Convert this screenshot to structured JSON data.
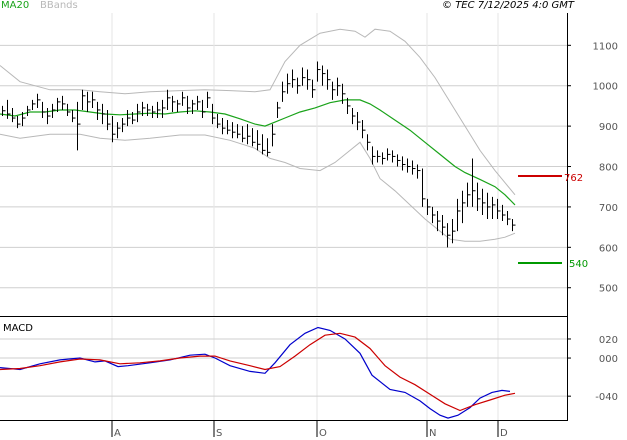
{
  "header": {
    "ma_label": "MA20",
    "bb_label": "BBands",
    "timestamp": "© TEC 7/12/2025 4:0 GMT"
  },
  "macd_label": "MACD",
  "levels": {
    "resistance": {
      "value": 762,
      "label": "762",
      "color": "#cc0000"
    },
    "support": {
      "value": 540,
      "label": "540",
      "color": "#009900"
    }
  },
  "colors": {
    "ma": "#1aa31a",
    "bands": "#b8b8b8",
    "bars": "#000000",
    "macd_line": "#0000cc",
    "signal_line": "#cc0000",
    "grid": "#cfcfcf"
  },
  "chart_data": [
    {
      "type": "ohlc",
      "name": "price",
      "y_ticks": [
        500,
        600,
        700,
        800,
        900,
        1000,
        1100
      ],
      "y_tick_labels": [
        "500",
        "600",
        "700",
        "800",
        "900",
        "1000",
        "1100"
      ],
      "ylim": [
        430,
        1180
      ],
      "x_ticks": [
        "A",
        "S",
        "O",
        "N",
        "D"
      ],
      "grid": true,
      "ma20": [
        [
          0,
          930
        ],
        [
          15,
          925
        ],
        [
          30,
          935
        ],
        [
          45,
          935
        ],
        [
          60,
          940
        ],
        [
          75,
          940
        ],
        [
          90,
          935
        ],
        [
          105,
          930
        ],
        [
          120,
          928
        ],
        [
          135,
          930
        ],
        [
          150,
          932
        ],
        [
          165,
          930
        ],
        [
          180,
          935
        ],
        [
          195,
          938
        ],
        [
          210,
          935
        ],
        [
          225,
          930
        ],
        [
          240,
          918
        ],
        [
          255,
          905
        ],
        [
          265,
          900
        ],
        [
          275,
          910
        ],
        [
          285,
          920
        ],
        [
          300,
          935
        ],
        [
          315,
          945
        ],
        [
          330,
          958
        ],
        [
          345,
          965
        ],
        [
          360,
          965
        ],
        [
          370,
          955
        ],
        [
          380,
          940
        ],
        [
          395,
          915
        ],
        [
          410,
          890
        ],
        [
          425,
          860
        ],
        [
          440,
          830
        ],
        [
          455,
          800
        ],
        [
          465,
          785
        ],
        [
          480,
          768
        ],
        [
          495,
          750
        ],
        [
          505,
          730
        ],
        [
          515,
          705
        ]
      ],
      "bb_upper": [
        [
          0,
          1050
        ],
        [
          20,
          1010
        ],
        [
          50,
          990
        ],
        [
          80,
          990
        ],
        [
          100,
          985
        ],
        [
          125,
          980
        ],
        [
          150,
          985
        ],
        [
          180,
          988
        ],
        [
          205,
          990
        ],
        [
          230,
          988
        ],
        [
          255,
          985
        ],
        [
          270,
          990
        ],
        [
          285,
          1060
        ],
        [
          300,
          1100
        ],
        [
          320,
          1130
        ],
        [
          340,
          1140
        ],
        [
          355,
          1135
        ],
        [
          365,
          1120
        ],
        [
          375,
          1140
        ],
        [
          390,
          1135
        ],
        [
          405,
          1110
        ],
        [
          420,
          1070
        ],
        [
          435,
          1020
        ],
        [
          450,
          960
        ],
        [
          465,
          900
        ],
        [
          480,
          840
        ],
        [
          495,
          790
        ],
        [
          505,
          760
        ],
        [
          515,
          730
        ]
      ],
      "bb_lower": [
        [
          0,
          880
        ],
        [
          20,
          870
        ],
        [
          50,
          880
        ],
        [
          80,
          880
        ],
        [
          100,
          870
        ],
        [
          125,
          865
        ],
        [
          150,
          870
        ],
        [
          180,
          878
        ],
        [
          205,
          878
        ],
        [
          230,
          865
        ],
        [
          255,
          845
        ],
        [
          270,
          820
        ],
        [
          285,
          810
        ],
        [
          300,
          795
        ],
        [
          320,
          790
        ],
        [
          335,
          810
        ],
        [
          350,
          840
        ],
        [
          360,
          860
        ],
        [
          370,
          820
        ],
        [
          380,
          770
        ],
        [
          395,
          740
        ],
        [
          410,
          705
        ],
        [
          425,
          670
        ],
        [
          440,
          640
        ],
        [
          450,
          620
        ],
        [
          465,
          615
        ],
        [
          480,
          615
        ],
        [
          495,
          620
        ],
        [
          505,
          625
        ],
        [
          515,
          635
        ]
      ],
      "bars": [
        [
          2,
          950,
          925,
          938
        ],
        [
          7,
          965,
          918,
          930
        ],
        [
          12,
          945,
          910,
          920
        ],
        [
          17,
          925,
          895,
          905
        ],
        [
          22,
          935,
          900,
          920
        ],
        [
          27,
          950,
          925,
          940
        ],
        [
          32,
          965,
          940,
          955
        ],
        [
          37,
          980,
          945,
          965
        ],
        [
          42,
          960,
          920,
          935
        ],
        [
          47,
          945,
          905,
          925
        ],
        [
          52,
          955,
          920,
          940
        ],
        [
          57,
          970,
          935,
          960
        ],
        [
          62,
          975,
          940,
          955
        ],
        [
          67,
          955,
          925,
          935
        ],
        [
          72,
          940,
          910,
          920
        ],
        [
          77,
          960,
          840,
          905
        ],
        [
          82,
          990,
          940,
          975
        ],
        [
          87,
          985,
          935,
          960
        ],
        [
          92,
          985,
          945,
          965
        ],
        [
          97,
          960,
          915,
          940
        ],
        [
          102,
          955,
          905,
          930
        ],
        [
          107,
          940,
          890,
          905
        ],
        [
          112,
          925,
          860,
          880
        ],
        [
          117,
          910,
          870,
          895
        ],
        [
          122,
          920,
          885,
          905
        ],
        [
          127,
          940,
          900,
          920
        ],
        [
          132,
          935,
          905,
          915
        ],
        [
          137,
          955,
          910,
          935
        ],
        [
          142,
          960,
          925,
          945
        ],
        [
          147,
          955,
          925,
          940
        ],
        [
          152,
          950,
          920,
          935
        ],
        [
          157,
          960,
          920,
          940
        ],
        [
          162,
          965,
          920,
          945
        ],
        [
          167,
          990,
          940,
          970
        ],
        [
          172,
          975,
          935,
          960
        ],
        [
          177,
          965,
          935,
          955
        ],
        [
          182,
          985,
          950,
          970
        ],
        [
          187,
          975,
          930,
          945
        ],
        [
          192,
          965,
          930,
          955
        ],
        [
          197,
          975,
          940,
          960
        ],
        [
          202,
          965,
          920,
          935
        ],
        [
          207,
          985,
          945,
          970
        ],
        [
          212,
          955,
          905,
          920
        ],
        [
          217,
          930,
          895,
          905
        ],
        [
          222,
          920,
          880,
          895
        ],
        [
          227,
          915,
          880,
          890
        ],
        [
          232,
          910,
          870,
          885
        ],
        [
          237,
          905,
          870,
          880
        ],
        [
          242,
          900,
          860,
          870
        ],
        [
          247,
          905,
          855,
          875
        ],
        [
          252,
          895,
          850,
          860
        ],
        [
          257,
          890,
          840,
          855
        ],
        [
          262,
          880,
          830,
          840
        ],
        [
          267,
          870,
          825,
          835
        ],
        [
          272,
          905,
          850,
          880
        ],
        [
          277,
          960,
          920,
          945
        ],
        [
          282,
          1010,
          960,
          985
        ],
        [
          287,
          1030,
          980,
          1005
        ],
        [
          292,
          1040,
          995,
          1015
        ],
        [
          297,
          1020,
          980,
          1000
        ],
        [
          302,
          1045,
          1000,
          1020
        ],
        [
          307,
          1040,
          990,
          1015
        ],
        [
          312,
          1015,
          970,
          990
        ],
        [
          317,
          1060,
          1010,
          1040
        ],
        [
          322,
          1050,
          1000,
          1030
        ],
        [
          327,
          1040,
          990,
          1015
        ],
        [
          332,
          1010,
          965,
          990
        ],
        [
          337,
          1020,
          975,
          1000
        ],
        [
          342,
          1005,
          955,
          980
        ],
        [
          347,
          970,
          930,
          950
        ],
        [
          352,
          945,
          905,
          925
        ],
        [
          357,
          935,
          890,
          910
        ],
        [
          362,
          915,
          870,
          890
        ],
        [
          367,
          880,
          840,
          860
        ],
        [
          372,
          850,
          805,
          825
        ],
        [
          377,
          840,
          810,
          825
        ],
        [
          382,
          835,
          805,
          820
        ],
        [
          387,
          845,
          815,
          830
        ],
        [
          392,
          840,
          810,
          825
        ],
        [
          397,
          830,
          800,
          815
        ],
        [
          402,
          825,
          790,
          805
        ],
        [
          407,
          820,
          785,
          800
        ],
        [
          412,
          815,
          780,
          795
        ],
        [
          417,
          805,
          770,
          790
        ],
        [
          422,
          795,
          700,
          720
        ],
        [
          427,
          720,
          680,
          700
        ],
        [
          432,
          700,
          660,
          680
        ],
        [
          437,
          690,
          640,
          665
        ],
        [
          442,
          680,
          630,
          650
        ],
        [
          447,
          660,
          600,
          630
        ],
        [
          452,
          670,
          610,
          640
        ],
        [
          457,
          720,
          640,
          690
        ],
        [
          462,
          740,
          660,
          710
        ],
        [
          467,
          760,
          700,
          730
        ],
        [
          472,
          820,
          700,
          740
        ],
        [
          477,
          760,
          690,
          720
        ],
        [
          482,
          745,
          680,
          710
        ],
        [
          487,
          735,
          670,
          700
        ],
        [
          492,
          725,
          670,
          705
        ],
        [
          497,
          720,
          670,
          690
        ],
        [
          502,
          705,
          665,
          680
        ],
        [
          507,
          690,
          655,
          670
        ],
        [
          512,
          670,
          640,
          655
        ]
      ]
    },
    {
      "type": "line",
      "name": "macd",
      "y_ticks": [
        20,
        0,
        -40
      ],
      "y_tick_labels": [
        "020",
        "000",
        "-040"
      ],
      "ylim": [
        -65,
        42
      ],
      "series": [
        {
          "name": "MACD",
          "color": "#0000cc",
          "points": [
            [
              0,
              -10
            ],
            [
              20,
              -12
            ],
            [
              40,
              -6
            ],
            [
              60,
              -2
            ],
            [
              80,
              0
            ],
            [
              95,
              -4
            ],
            [
              105,
              -3
            ],
            [
              118,
              -9
            ],
            [
              128,
              -8
            ],
            [
              150,
              -5
            ],
            [
              170,
              -2
            ],
            [
              190,
              3
            ],
            [
              205,
              4
            ],
            [
              215,
              0
            ],
            [
              230,
              -8
            ],
            [
              250,
              -14
            ],
            [
              265,
              -16
            ],
            [
              275,
              -5
            ],
            [
              290,
              14
            ],
            [
              305,
              26
            ],
            [
              318,
              32
            ],
            [
              330,
              29
            ],
            [
              345,
              20
            ],
            [
              360,
              5
            ],
            [
              372,
              -18
            ],
            [
              390,
              -33
            ],
            [
              405,
              -36
            ],
            [
              420,
              -45
            ],
            [
              430,
              -53
            ],
            [
              440,
              -60
            ],
            [
              448,
              -63
            ],
            [
              458,
              -60
            ],
            [
              470,
              -52
            ],
            [
              480,
              -42
            ],
            [
              492,
              -36
            ],
            [
              502,
              -34
            ],
            [
              510,
              -35
            ]
          ]
        },
        {
          "name": "Signal",
          "color": "#cc0000",
          "points": [
            [
              0,
              -12
            ],
            [
              20,
              -11
            ],
            [
              40,
              -8
            ],
            [
              60,
              -4
            ],
            [
              80,
              -1
            ],
            [
              100,
              -2
            ],
            [
              120,
              -6
            ],
            [
              140,
              -5
            ],
            [
              160,
              -3
            ],
            [
              180,
              0
            ],
            [
              200,
              2
            ],
            [
              215,
              2
            ],
            [
              230,
              -3
            ],
            [
              250,
              -8
            ],
            [
              265,
              -12
            ],
            [
              280,
              -9
            ],
            [
              295,
              2
            ],
            [
              310,
              14
            ],
            [
              325,
              24
            ],
            [
              340,
              26
            ],
            [
              355,
              22
            ],
            [
              370,
              10
            ],
            [
              385,
              -8
            ],
            [
              400,
              -20
            ],
            [
              415,
              -28
            ],
            [
              430,
              -38
            ],
            [
              445,
              -48
            ],
            [
              460,
              -55
            ],
            [
              475,
              -49
            ],
            [
              490,
              -44
            ],
            [
              505,
              -39
            ],
            [
              515,
              -37
            ]
          ]
        }
      ]
    }
  ]
}
